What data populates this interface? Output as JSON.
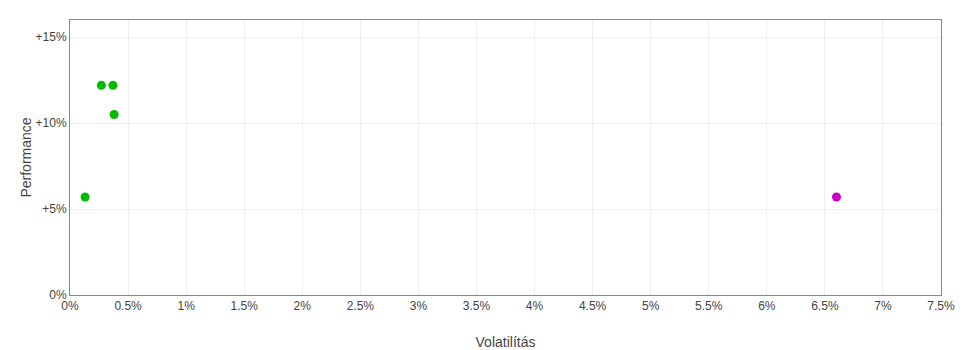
{
  "chart_data": {
    "type": "scatter",
    "xlabel": "Volatilítás",
    "ylabel": "Performance",
    "xlim": [
      0,
      0.075
    ],
    "ylim": [
      0,
      0.16
    ],
    "xticks": [
      {
        "value": 0.0,
        "label": "0%"
      },
      {
        "value": 0.005,
        "label": "0.5%"
      },
      {
        "value": 0.01,
        "label": "1%"
      },
      {
        "value": 0.015,
        "label": "1.5%"
      },
      {
        "value": 0.02,
        "label": "2%"
      },
      {
        "value": 0.025,
        "label": "2.5%"
      },
      {
        "value": 0.03,
        "label": "3%"
      },
      {
        "value": 0.035,
        "label": "3.5%"
      },
      {
        "value": 0.04,
        "label": "4%"
      },
      {
        "value": 0.045,
        "label": "4.5%"
      },
      {
        "value": 0.05,
        "label": "5%"
      },
      {
        "value": 0.055,
        "label": "5.5%"
      },
      {
        "value": 0.06,
        "label": "6%"
      },
      {
        "value": 0.065,
        "label": "6.5%"
      },
      {
        "value": 0.07,
        "label": "7%"
      },
      {
        "value": 0.075,
        "label": "7.5%"
      }
    ],
    "yticks": [
      {
        "value": 0.0,
        "label": "0%"
      },
      {
        "value": 0.05,
        "label": "+5%"
      },
      {
        "value": 0.1,
        "label": "+10%"
      },
      {
        "value": 0.15,
        "label": "+15%"
      }
    ],
    "grid": true,
    "marker": "circle",
    "series": [
      {
        "color": "#00bb00",
        "x": [
          0.0027,
          0.0037,
          0.0038,
          0.0013
        ],
        "values": [
          0.122,
          0.122,
          0.105,
          0.057
        ]
      },
      {
        "color": "#cc00cc",
        "x": [
          0.066
        ],
        "values": [
          0.057
        ]
      }
    ]
  }
}
